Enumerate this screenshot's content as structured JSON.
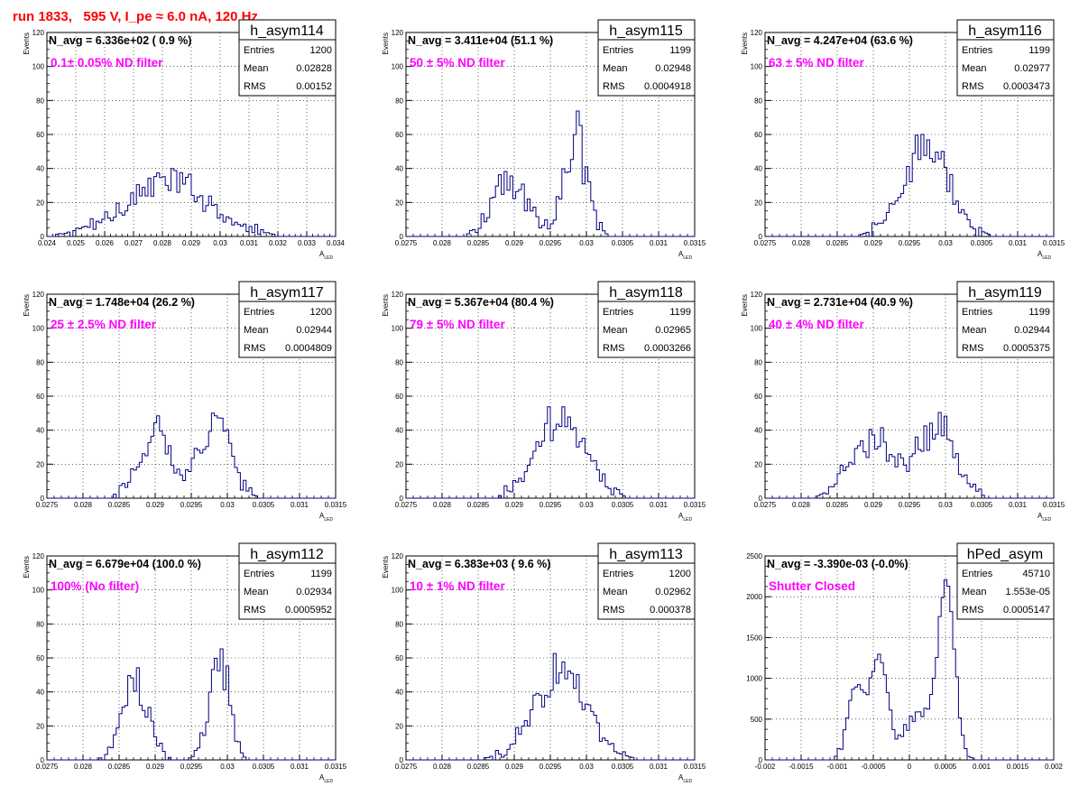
{
  "page": {
    "title": "run 1833,   595 V, I_pe ≈ 6.0 nA, 120 Hz"
  },
  "style": {
    "histogram_color": "#000080",
    "annotation_color": "#ff00ff",
    "title_color": "#ff0000",
    "grid": "dotted"
  },
  "chart_data": [
    {
      "type": "histogram",
      "name": "h_asym114",
      "navg": "N_avg = 6.336e+02 ( 0.9 %)",
      "filter": "0.1± 0.05% ND filter",
      "stats": {
        "entries": "1200",
        "mean": "0.02828",
        "rms": "0.00152"
      },
      "xlabel": "A_LED",
      "ylabel": "Events",
      "xlim": [
        0.024,
        0.034
      ],
      "ylim": [
        0,
        120
      ],
      "xticks": [
        0.024,
        0.025,
        0.026,
        0.027,
        0.028,
        0.029,
        0.03,
        0.031,
        0.032,
        0.033,
        0.034
      ],
      "xticklabels": [
        "0.024",
        "0.025",
        "0.026",
        "0.027",
        "0.028",
        "0.029",
        "0.03",
        "0.031",
        "0.032",
        "0.033",
        "0.034"
      ],
      "yticks": [
        0,
        20,
        40,
        60,
        80,
        100,
        120
      ],
      "yticklabels": [
        "0",
        "20",
        "40",
        "60",
        "80",
        "100",
        "120"
      ],
      "peaks": [
        {
          "mu": 0.0282,
          "sigma": 0.0015,
          "amp": 32
        }
      ],
      "jitter": 0.25
    },
    {
      "type": "histogram",
      "name": "h_asym115",
      "navg": "N_avg = 3.411e+04 (51.1 %)",
      "filter": "50 ± 5% ND filter",
      "stats": {
        "entries": "1199",
        "mean": "0.02948",
        "rms": "0.0004918"
      },
      "xlabel": "A_LED",
      "ylabel": "Events",
      "xlim": [
        0.0275,
        0.0315
      ],
      "ylim": [
        0,
        120
      ],
      "xticks": [
        0.0275,
        0.028,
        0.0285,
        0.029,
        0.0295,
        0.03,
        0.0305,
        0.031,
        0.0315
      ],
      "xticklabels": [
        "0.0275",
        "0.028",
        "0.0285",
        "0.029",
        "0.0295",
        "0.03",
        "0.0305",
        "0.031",
        "0.0315"
      ],
      "yticks": [
        0,
        20,
        40,
        60,
        80,
        100,
        120
      ],
      "yticklabels": [
        "0",
        "20",
        "40",
        "60",
        "80",
        "100",
        "120"
      ],
      "peaks": [
        {
          "mu": 0.02895,
          "sigma": 0.00025,
          "amp": 32
        },
        {
          "mu": 0.02985,
          "sigma": 0.00016,
          "amp": 58
        }
      ],
      "jitter": 0.3
    },
    {
      "type": "histogram",
      "name": "h_asym116",
      "navg": "N_avg = 4.247e+04 (63.6 %)",
      "filter": "63 ± 5% ND filter",
      "stats": {
        "entries": "1199",
        "mean": "0.02977",
        "rms": "0.0003473"
      },
      "xlabel": "A_LED",
      "ylabel": "Events",
      "xlim": [
        0.0275,
        0.0315
      ],
      "ylim": [
        0,
        120
      ],
      "xticks": [
        0.0275,
        0.028,
        0.0285,
        0.029,
        0.0295,
        0.03,
        0.0305,
        0.031,
        0.0315
      ],
      "xticklabels": [
        "0.0275",
        "0.028",
        "0.0285",
        "0.029",
        "0.0295",
        "0.03",
        "0.0305",
        "0.031",
        "0.0315"
      ],
      "yticks": [
        0,
        20,
        40,
        60,
        80,
        100,
        120
      ],
      "yticklabels": [
        "0",
        "20",
        "40",
        "60",
        "80",
        "100",
        "120"
      ],
      "peaks": [
        {
          "mu": 0.02972,
          "sigma": 0.00032,
          "amp": 52
        }
      ],
      "jitter": 0.25
    },
    {
      "type": "histogram",
      "name": "h_asym117",
      "navg": "N_avg = 1.748e+04 (26.2 %)",
      "filter": "25 ± 2.5% ND filter",
      "stats": {
        "entries": "1200",
        "mean": "0.02944",
        "rms": "0.0004809"
      },
      "xlabel": "A_LED",
      "ylabel": "Events",
      "xlim": [
        0.0275,
        0.0315
      ],
      "ylim": [
        0,
        120
      ],
      "xticks": [
        0.0275,
        0.028,
        0.0285,
        0.029,
        0.0295,
        0.03,
        0.0305,
        0.031,
        0.0315
      ],
      "xticklabels": [
        "0.0275",
        "0.028",
        "0.0285",
        "0.029",
        "0.0295",
        "0.03",
        "0.0305",
        "0.031",
        "0.0315"
      ],
      "yticks": [
        0,
        20,
        40,
        60,
        80,
        100,
        120
      ],
      "yticklabels": [
        "0",
        "20",
        "40",
        "60",
        "80",
        "100",
        "120"
      ],
      "peaks": [
        {
          "mu": 0.02898,
          "sigma": 0.00022,
          "amp": 39
        },
        {
          "mu": 0.02982,
          "sigma": 0.00022,
          "amp": 47
        }
      ],
      "jitter": 0.25
    },
    {
      "type": "histogram",
      "name": "h_asym118",
      "navg": "N_avg = 5.367e+04 (80.4 %)",
      "filter": "79 ± 5% ND filter",
      "stats": {
        "entries": "1199",
        "mean": "0.02965",
        "rms": "0.0003266"
      },
      "xlabel": "A_LED",
      "ylabel": "Events",
      "xlim": [
        0.0275,
        0.0315
      ],
      "ylim": [
        0,
        120
      ],
      "xticks": [
        0.0275,
        0.028,
        0.0285,
        0.029,
        0.0295,
        0.03,
        0.0305,
        0.031,
        0.0315
      ],
      "xticklabels": [
        "0.0275",
        "0.028",
        "0.0285",
        "0.029",
        "0.0295",
        "0.03",
        "0.0305",
        "0.031",
        "0.0315"
      ],
      "yticks": [
        0,
        20,
        40,
        60,
        80,
        100,
        120
      ],
      "yticklabels": [
        "0",
        "20",
        "40",
        "60",
        "80",
        "100",
        "120"
      ],
      "peaks": [
        {
          "mu": 0.02965,
          "sigma": 0.00033,
          "amp": 50
        }
      ],
      "jitter": 0.25
    },
    {
      "type": "histogram",
      "name": "h_asym119",
      "navg": "N_avg = 2.731e+04 (40.9 %)",
      "filter": "40 ± 4% ND filter",
      "stats": {
        "entries": "1199",
        "mean": "0.02944",
        "rms": "0.0005375"
      },
      "xlabel": "A_LED",
      "ylabel": "Events",
      "xlim": [
        0.0275,
        0.0315
      ],
      "ylim": [
        0,
        120
      ],
      "xticks": [
        0.0275,
        0.028,
        0.0285,
        0.029,
        0.0295,
        0.03,
        0.0305,
        0.031,
        0.0315
      ],
      "xticklabels": [
        "0.0275",
        "0.028",
        "0.0285",
        "0.029",
        "0.0295",
        "0.03",
        "0.0305",
        "0.031",
        "0.0315"
      ],
      "yticks": [
        0,
        20,
        40,
        60,
        80,
        100,
        120
      ],
      "yticklabels": [
        "0",
        "20",
        "40",
        "60",
        "80",
        "100",
        "120"
      ],
      "peaks": [
        {
          "mu": 0.02898,
          "sigma": 0.0003,
          "amp": 36
        },
        {
          "mu": 0.02988,
          "sigma": 0.00025,
          "amp": 43
        }
      ],
      "jitter": 0.25
    },
    {
      "type": "histogram",
      "name": "h_asym112",
      "navg": "N_avg = 6.679e+04 (100.0 %)",
      "filter": "100% (No filter)",
      "stats": {
        "entries": "1199",
        "mean": "0.02934",
        "rms": "0.0005952"
      },
      "xlabel": "A_LED",
      "ylabel": "Events",
      "xlim": [
        0.0275,
        0.0315
      ],
      "ylim": [
        0,
        120
      ],
      "xticks": [
        0.0275,
        0.028,
        0.0285,
        0.029,
        0.0295,
        0.03,
        0.0305,
        0.031,
        0.0315
      ],
      "xticklabels": [
        "0.0275",
        "0.028",
        "0.0285",
        "0.029",
        "0.0295",
        "0.03",
        "0.0305",
        "0.031",
        "0.0315"
      ],
      "yticks": [
        0,
        20,
        40,
        60,
        80,
        100,
        120
      ],
      "yticklabels": [
        "0",
        "20",
        "40",
        "60",
        "80",
        "100",
        "120"
      ],
      "peaks": [
        {
          "mu": 0.02872,
          "sigma": 0.00018,
          "amp": 48
        },
        {
          "mu": 0.02988,
          "sigma": 0.00014,
          "amp": 60
        }
      ],
      "jitter": 0.25
    },
    {
      "type": "histogram",
      "name": "h_asym113",
      "navg": "N_avg = 6.383e+03 ( 9.6 %)",
      "filter": "10 ± 1% ND filter",
      "stats": {
        "entries": "1200",
        "mean": "0.02962",
        "rms": "0.000378"
      },
      "xlabel": "A_LED",
      "ylabel": "Events",
      "xlim": [
        0.0275,
        0.0315
      ],
      "ylim": [
        0,
        120
      ],
      "xticks": [
        0.0275,
        0.028,
        0.0285,
        0.029,
        0.0295,
        0.03,
        0.0305,
        0.031,
        0.0315
      ],
      "xticklabels": [
        "0.0275",
        "0.028",
        "0.0285",
        "0.029",
        "0.0295",
        "0.03",
        "0.0305",
        "0.031",
        "0.0315"
      ],
      "yticks": [
        0,
        20,
        40,
        60,
        80,
        100,
        120
      ],
      "yticklabels": [
        "0",
        "20",
        "40",
        "60",
        "80",
        "100",
        "120"
      ],
      "peaks": [
        {
          "mu": 0.02962,
          "sigma": 0.00038,
          "amp": 50
        }
      ],
      "jitter": 0.25
    },
    {
      "type": "histogram",
      "name": "hPed_asym",
      "navg": "N_avg = -3.390e-03 (-0.0%)",
      "filter": "Shutter Closed",
      "stats": {
        "entries": "45710",
        "mean": "1.553e-05",
        "rms": "0.0005147"
      },
      "xlabel": "",
      "ylabel": "",
      "xlim": [
        -0.002,
        0.002
      ],
      "ylim": [
        0,
        2500
      ],
      "xticks": [
        -0.002,
        -0.0015,
        -0.001,
        -0.0005,
        0,
        0.0005,
        0.001,
        0.0015,
        0.002
      ],
      "xticklabels": [
        "-0.002",
        "-0.0015",
        "-0.001",
        "-0.0005",
        "0",
        "0.0005",
        "0.001",
        "0.0015",
        "0.002"
      ],
      "yticks": [
        0,
        500,
        1000,
        1500,
        2000,
        2500
      ],
      "yticklabels": [
        "0",
        "500",
        "1000",
        "1500",
        "2000",
        "2500"
      ],
      "peaks": [
        {
          "mu": -0.00073,
          "sigma": 0.00012,
          "amp": 900
        },
        {
          "mu": -0.00042,
          "sigma": 0.00011,
          "amp": 1250
        },
        {
          "mu": 0.00017,
          "sigma": 0.00025,
          "amp": 560
        },
        {
          "mu": 0.00052,
          "sigma": 0.00011,
          "amp": 2050
        }
      ],
      "jitter": 0.08
    }
  ]
}
